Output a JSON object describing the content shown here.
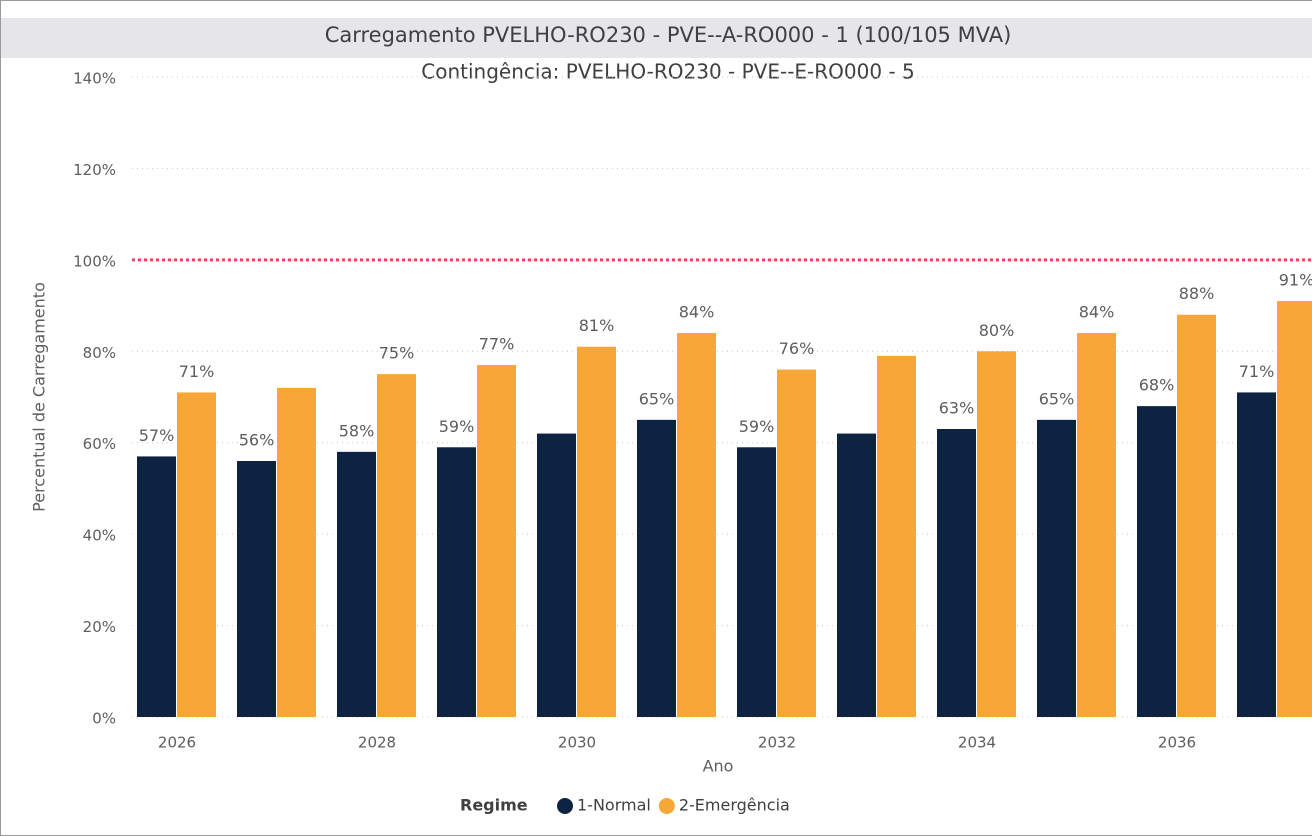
{
  "chart_data": {
    "type": "bar",
    "title": "Carregamento PVELHO-RO230 - PVE--A-RO000 - 1 (100/105 MVA)",
    "subtitle": "Contingência: PVELHO-RO230 - PVE--E-RO000 - 5",
    "x_label": "Ano",
    "y_label": "Percentual de Carregamento",
    "legend_title": "Regime",
    "categories": [
      "2026",
      null,
      "2028",
      null,
      "2030",
      null,
      "2032",
      null,
      "2034",
      null,
      "2036",
      null
    ],
    "series": [
      {
        "name": "1-Normal",
        "color": "#0e2241",
        "values": [
          57,
          56,
          58,
          59,
          62,
          65,
          59,
          62,
          63,
          65,
          68,
          71
        ],
        "value_labels": [
          "57%",
          "56%",
          "58%",
          "59%",
          null,
          "65%",
          "59%",
          null,
          "63%",
          "65%",
          "68%",
          "71%"
        ]
      },
      {
        "name": "2-Emergência",
        "color": "#f7a738",
        "values": [
          71,
          72,
          75,
          77,
          81,
          84,
          76,
          79,
          80,
          84,
          88,
          91
        ],
        "value_labels": [
          "71%",
          null,
          "75%",
          "77%",
          "81%",
          "84%",
          "76%",
          null,
          "80%",
          "84%",
          "88%",
          "91%"
        ]
      }
    ],
    "ylim": [
      0,
      140
    ],
    "yticks": [
      {
        "value": 0,
        "label": "0%"
      },
      {
        "value": 20,
        "label": "20%"
      },
      {
        "value": 40,
        "label": "40%"
      },
      {
        "value": 60,
        "label": "60%"
      },
      {
        "value": 80,
        "label": "80%"
      },
      {
        "value": 100,
        "label": "100%"
      },
      {
        "value": 120,
        "label": "120%"
      },
      {
        "value": 140,
        "label": "140%"
      }
    ],
    "grid": true,
    "reference_line": {
      "value": 100,
      "color": "#e8475f"
    },
    "legend_position": "bottom"
  }
}
